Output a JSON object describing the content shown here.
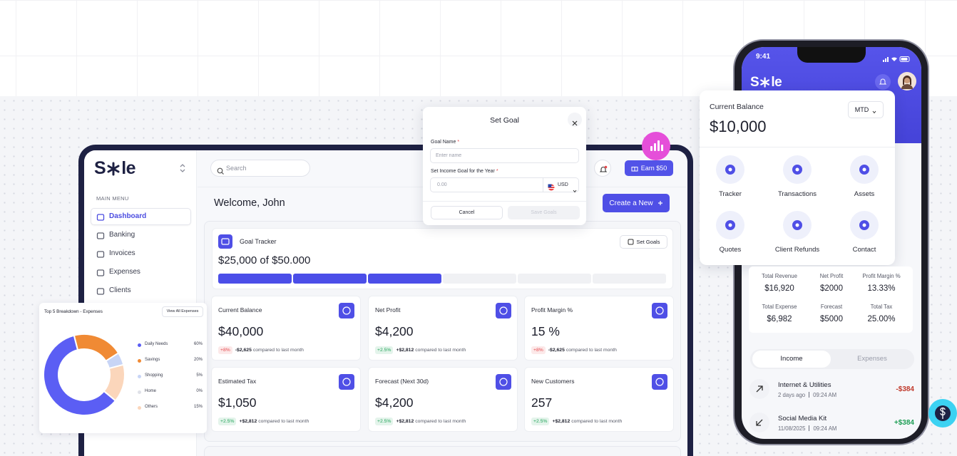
{
  "sidebar": {
    "logo": [
      "S",
      "le"
    ],
    "section": "MAIN MENU",
    "menu": [
      "Dashboard",
      "Banking",
      "Invoices",
      "Expenses",
      "Clients"
    ]
  },
  "topbar": {
    "search": "Search",
    "earn": "Earn $50"
  },
  "welcome": "Welcome, John",
  "create_button": "Create a New",
  "goal_tracker": {
    "title": "Goal Tracker",
    "button": "Set Goals",
    "progress": "$25,000 of $50.000"
  },
  "compare_note": "compared to last month",
  "stats": [
    {
      "title": "Current Balance",
      "value": "$40,000",
      "badge": "+8%",
      "badge_color": "#e5484d",
      "delta": "-$2,625"
    },
    {
      "title": "Net Profit",
      "value": "$4,200",
      "badge": "+2.5%",
      "badge_color": "#23a55a",
      "delta": "+$2,812"
    },
    {
      "title": "Profit Margin %",
      "value": "15 %",
      "badge": "+8%",
      "badge_color": "#e5484d",
      "delta": "-$2,625"
    },
    {
      "title": "Estimated Tax",
      "value": "$1,050",
      "badge": "+2.5%",
      "badge_color": "#23a55a",
      "delta": "+$2,812"
    },
    {
      "title": "Forecast (Next 30d)",
      "value": "$4,200",
      "badge": "+2.5%",
      "badge_color": "#23a55a",
      "delta": "+$2,812"
    },
    {
      "title": "New Customers",
      "value": "257",
      "badge": "+2.5%",
      "badge_color": "#23a55a",
      "delta": "+$2,812"
    }
  ],
  "modal": {
    "title": "Set Goal",
    "required": "*",
    "name_label": "Goal Name",
    "name_placeholder": "Enter name",
    "income_label": "Set Income Goal for the Year",
    "income_placeholder": "0.00",
    "currency": "USD",
    "cancel": "Cancel",
    "save": "Save Goals"
  },
  "donut": {
    "title": "Top 5 Breakdown - Expenses",
    "button": "View All Expenses",
    "items": [
      {
        "name": "Daily Needs",
        "value": 60,
        "label": "60%",
        "color": "#5b5ef4"
      },
      {
        "name": "Savings",
        "value": 20,
        "label": "20%",
        "color": "#f08a34"
      },
      {
        "name": "Shopping",
        "value": 5,
        "label": "5%",
        "color": "#c8d5f6"
      },
      {
        "name": "Home",
        "value": 0,
        "label": "0%",
        "color": "#dfe1e8"
      },
      {
        "name": "Others",
        "value": 15,
        "label": "15%",
        "color": "#fbd6bb"
      }
    ]
  },
  "phone": {
    "time": "9:41",
    "balance_card": {
      "title": "Current Balance",
      "period": "MTD",
      "amount": "$10,000",
      "actions": [
        "Tracker",
        "Transactions",
        "Assets",
        "Quotes",
        "Client Refunds",
        "Contact"
      ]
    },
    "metrics": [
      {
        "label": "Total Revenue",
        "value": "$16,920"
      },
      {
        "label": "Net Profit",
        "value": "$2000"
      },
      {
        "label": "Profit Margin %",
        "value": "13.33%"
      },
      {
        "label": "Total Expense",
        "value": "$6,982"
      },
      {
        "label": "Forecast",
        "value": "$5000"
      },
      {
        "label": "Total Tax",
        "value": "25.00%"
      }
    ],
    "tabs": [
      "Income",
      "Expenses"
    ],
    "transactions": [
      {
        "title": "Internet & Utilities",
        "when": "2 days ago",
        "time": "09:24 AM",
        "amount": "-$384",
        "color": "#c0392b"
      },
      {
        "title": "Social Media Kit",
        "when": "11/08/2025",
        "time": "09:24 AM",
        "amount": "+$384",
        "color": "#1e9e55"
      }
    ]
  }
}
